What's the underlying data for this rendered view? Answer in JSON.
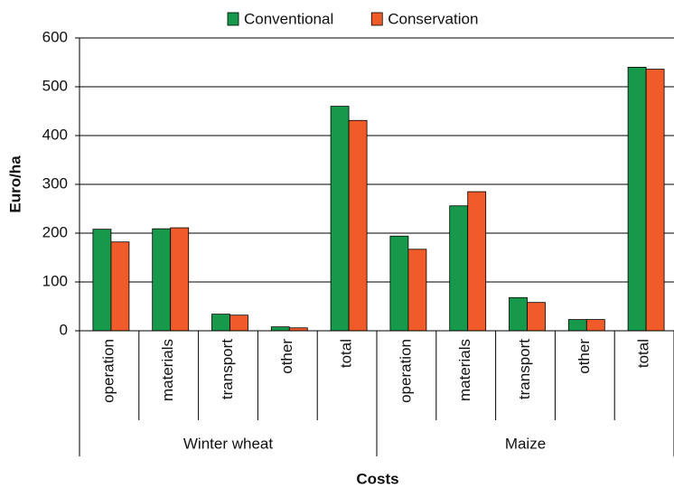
{
  "chart_data": {
    "type": "bar",
    "x_label": "Costs",
    "y_label": "Euro/ha",
    "groups": [
      {
        "label": "Winter wheat",
        "categories": [
          "operation",
          "materials",
          "transport",
          "other",
          "total"
        ]
      },
      {
        "label": "Maize",
        "categories": [
          "operation",
          "materials",
          "transport",
          "other",
          "total"
        ]
      }
    ],
    "series": [
      {
        "name": "Conventional",
        "color": "#16994a",
        "values": [
          208,
          209,
          34,
          8,
          460,
          194,
          256,
          68,
          23,
          540
        ]
      },
      {
        "name": "Conservation",
        "color": "#f15a29",
        "values": [
          182,
          211,
          32,
          6,
          431,
          167,
          285,
          58,
          23,
          536
        ]
      }
    ],
    "ylim": [
      0,
      600
    ],
    "yticks": [
      0,
      100,
      200,
      300,
      400,
      500,
      600
    ],
    "grid": true,
    "legend": "top"
  }
}
